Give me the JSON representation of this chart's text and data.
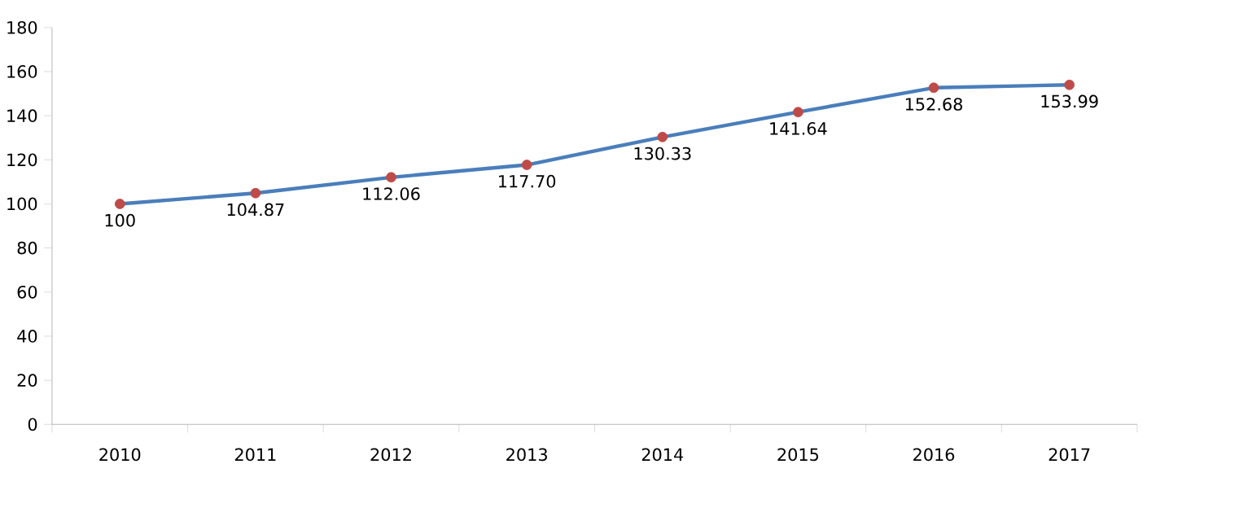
{
  "chart_data": {
    "type": "line",
    "categories": [
      "2010",
      "2011",
      "2012",
      "2013",
      "2014",
      "2015",
      "2016",
      "2017"
    ],
    "values": [
      100,
      104.87,
      112.06,
      117.7,
      130.33,
      141.64,
      152.68,
      153.99
    ],
    "value_labels": [
      "100",
      "104.87",
      "112.06",
      "117.70",
      "130.33",
      "141.64",
      "152.68",
      "153.99"
    ],
    "color": "#4a7ebb",
    "colors": [
      "#be4b48",
      "#be4b48",
      "#be4b48",
      "#be4b48",
      "#be4b48",
      "#be4b48",
      "#be4b48",
      "#be4b48"
    ],
    "marker": "circle",
    "line_style": "solid",
    "ylim": [
      0,
      180
    ],
    "yticks": [
      0,
      20,
      40,
      60,
      80,
      100,
      120,
      140,
      160,
      180
    ]
  }
}
